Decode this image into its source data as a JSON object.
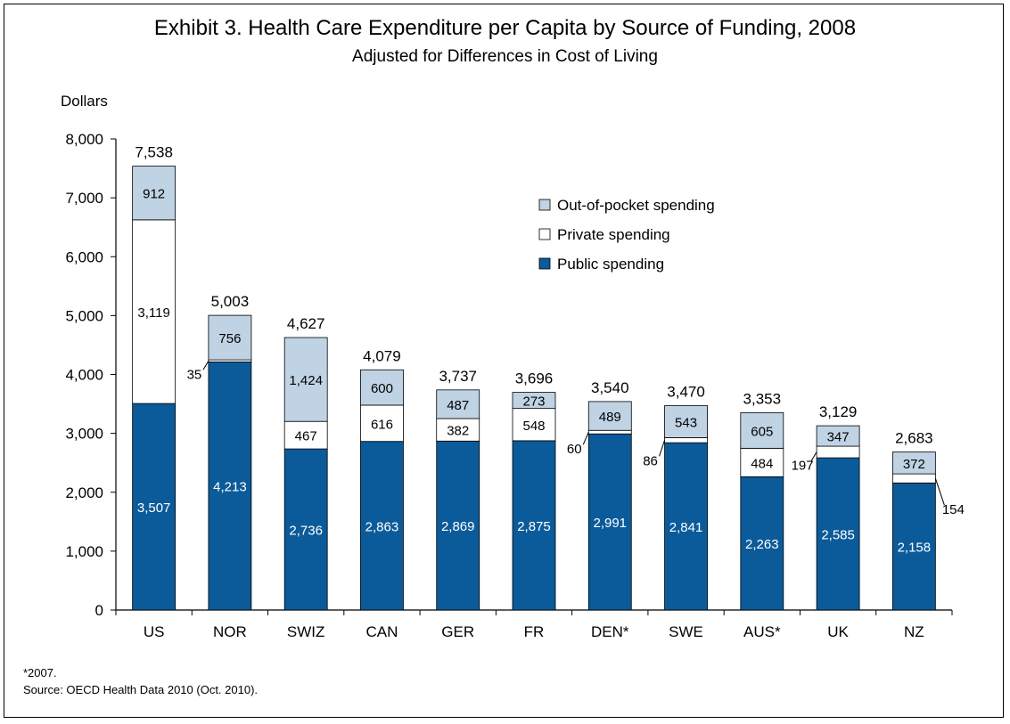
{
  "chart_data": {
    "type": "bar",
    "stacked": true,
    "title": "Exhibit 3. Health Care Expenditure per Capita by Source of Funding, 2008",
    "subtitle": "Adjusted for Differences in Cost of Living",
    "ylabel": "Dollars",
    "xlabel": "",
    "ylim": [
      0,
      8000
    ],
    "yticks": [
      0,
      1000,
      2000,
      3000,
      4000,
      5000,
      6000,
      7000,
      8000
    ],
    "ytick_labels": [
      "0",
      "1,000",
      "2,000",
      "3,000",
      "4,000",
      "5,000",
      "6,000",
      "7,000",
      "8,000"
    ],
    "categories": [
      "US",
      "NOR",
      "SWIZ",
      "CAN",
      "GER",
      "FR",
      "DEN*",
      "SWE",
      "AUS*",
      "UK",
      "NZ"
    ],
    "series": [
      {
        "name": "Public spending",
        "color": "#0b5b9a",
        "values": [
          3507,
          4213,
          2736,
          2863,
          2869,
          2875,
          2991,
          2841,
          2263,
          2585,
          2158
        ],
        "labels": [
          "3,507",
          "4,213",
          "2,736",
          "2,863",
          "2,869",
          "2,875",
          "2,991",
          "2,841",
          "2,263",
          "2,585",
          "2,158"
        ]
      },
      {
        "name": "Private spending",
        "color": "#ffffff",
        "values": [
          3119,
          35,
          467,
          616,
          382,
          548,
          60,
          86,
          484,
          197,
          154
        ],
        "labels": [
          "3,119",
          "35",
          "467",
          "616",
          "382",
          "548",
          "60",
          "86",
          "484",
          "197",
          "154"
        ]
      },
      {
        "name": "Out-of-pocket spending",
        "color": "#bfd3e4",
        "values": [
          912,
          756,
          1424,
          600,
          487,
          273,
          489,
          543,
          605,
          347,
          372
        ],
        "labels": [
          "912",
          "756",
          "1,424",
          "600",
          "487",
          "273",
          "489",
          "543",
          "605",
          "347",
          "372"
        ]
      }
    ],
    "totals": [
      "7,538",
      "5,003",
      "4,627",
      "4,079",
      "3,737",
      "3,696",
      "3,540",
      "3,470",
      "3,353",
      "3,129",
      "2,683"
    ],
    "legend_order": [
      "Out-of-pocket spending",
      "Private spending",
      "Public spending"
    ],
    "legend_position": "upper-center-right",
    "grid": false
  },
  "footnotes": [
    "*2007.",
    "Source: OECD Health Data 2010 (Oct. 2010)."
  ]
}
